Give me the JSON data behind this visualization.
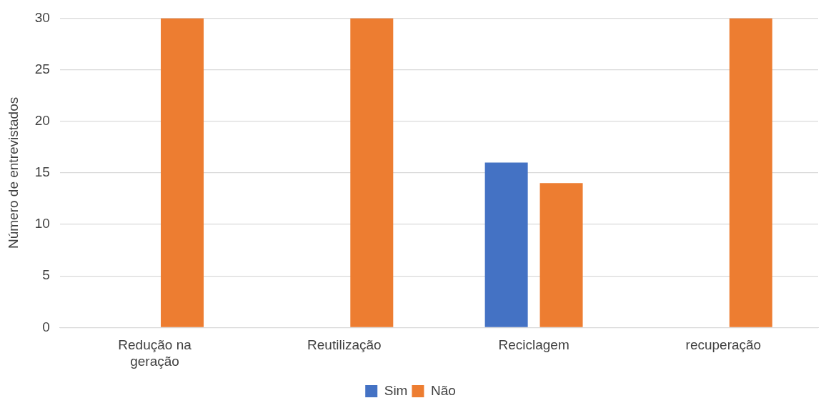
{
  "chart_data": {
    "type": "bar",
    "ylabel": "Número de entrevistados",
    "categories": [
      "Redução na geração",
      "Reutilização",
      "Reciclagem",
      "recuperação"
    ],
    "series": [
      {
        "name": "Sim",
        "color": "#4472c4",
        "values": [
          0,
          0,
          16,
          0
        ]
      },
      {
        "name": "Não",
        "color": "#ed7d31",
        "values": [
          30,
          30,
          14,
          30
        ]
      }
    ],
    "ylim": [
      0,
      30
    ],
    "yticks": [
      0,
      5,
      10,
      15,
      20,
      25,
      30
    ],
    "grid": "y",
    "legend": "bottom"
  }
}
